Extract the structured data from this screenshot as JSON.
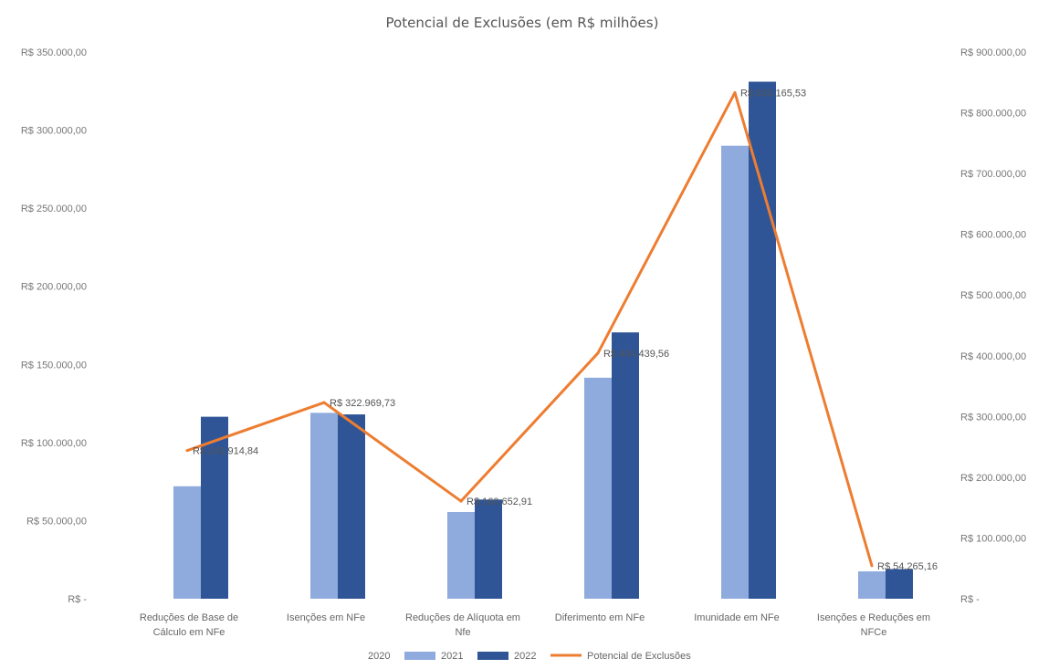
{
  "chart_data": {
    "type": "bar",
    "title": "Potencial de Exclusões (em R$ milhões)",
    "categories": [
      [
        "Reduções de Base de",
        "Cálculo em NFe"
      ],
      [
        "Isenções em NFe"
      ],
      [
        "Reduções de Alíquota em",
        "Nfe"
      ],
      [
        "Diferimento em NFe"
      ],
      [
        "Imunidade em NFe"
      ],
      [
        "Isenções e Reduções em",
        "NFCe"
      ]
    ],
    "series": [
      {
        "name": "2020",
        "type": "bar",
        "axis": "left",
        "color": "#a5b4d6",
        "values": [
          0,
          0,
          0,
          0,
          0,
          0
        ]
      },
      {
        "name": "2021",
        "type": "bar",
        "axis": "left",
        "color": "#8faadc",
        "values": [
          72000,
          119000,
          55500,
          141500,
          290000,
          17500
        ]
      },
      {
        "name": "2022",
        "type": "bar",
        "axis": "left",
        "color": "#2f5597",
        "values": [
          116500,
          118000,
          63500,
          170500,
          331000,
          19000
        ]
      },
      {
        "name": "Potencial de Exclusões",
        "type": "line",
        "axis": "right",
        "color": "#ed7d31",
        "values": [
          243914.84,
          322969.73,
          160652.91,
          404439.56,
          833165.53,
          54265.16
        ]
      }
    ],
    "data_labels": [
      "R$ 243.914,84",
      "R$ 322.969,73",
      "R$ 160.652,91",
      "R$ 404.439,56",
      "R$ 833.165,53",
      "R$ 54.265,16"
    ],
    "y_left": {
      "ylim": [
        0,
        350000
      ],
      "ticks": [
        "R$ -",
        "R$ 50.000,00",
        "R$ 100.000,00",
        "R$ 150.000,00",
        "R$ 200.000,00",
        "R$ 250.000,00",
        "R$ 300.000,00",
        "R$ 350.000,00"
      ]
    },
    "y_right": {
      "ylim": [
        0,
        900000
      ],
      "ticks": [
        "R$ -",
        "R$ 100.000,00",
        "R$ 200.000,00",
        "R$ 300.000,00",
        "R$ 400.000,00",
        "R$ 500.000,00",
        "R$ 600.000,00",
        "R$ 700.000,00",
        "R$ 800.000,00",
        "R$ 900.000,00"
      ]
    },
    "grid": false,
    "legend": "bottom"
  }
}
